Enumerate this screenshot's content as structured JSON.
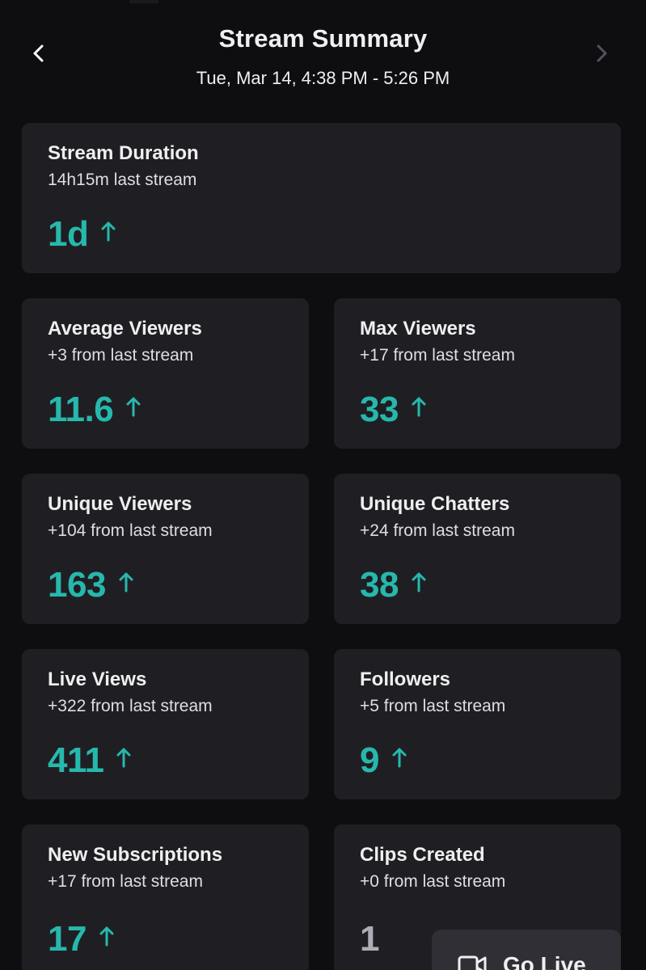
{
  "header": {
    "title": "Stream Summary",
    "date_range": "Tue, Mar 14, 4:38 PM - 5:26 PM"
  },
  "colors": {
    "accent": "#27b8ad",
    "card_bg": "#1f1f23",
    "page_bg": "#0e0e10",
    "muted_value": "#adadb8"
  },
  "icons": {
    "prev": "chevron-left-icon",
    "next": "chevron-right-icon",
    "trend": "arrow-up-icon",
    "pill": "video-camera-icon"
  },
  "stats": {
    "duration": {
      "title": "Stream Duration",
      "subtitle": "14h15m last stream",
      "value": "1d",
      "trend": "up"
    },
    "avg_viewers": {
      "title": "Average Viewers",
      "subtitle": "+3 from last stream",
      "value": "11.6",
      "trend": "up"
    },
    "max_viewers": {
      "title": "Max Viewers",
      "subtitle": "+17 from last stream",
      "value": "33",
      "trend": "up"
    },
    "unique_viewers": {
      "title": "Unique Viewers",
      "subtitle": "+104 from last stream",
      "value": "163",
      "trend": "up"
    },
    "unique_chatters": {
      "title": "Unique Chatters",
      "subtitle": "+24 from last stream",
      "value": "38",
      "trend": "up"
    },
    "live_views": {
      "title": "Live Views",
      "subtitle": "+322 from last stream",
      "value": "411",
      "trend": "up"
    },
    "followers": {
      "title": "Followers",
      "subtitle": "+5 from last stream",
      "value": "9",
      "trend": "up"
    },
    "new_subs": {
      "title": "New Subscriptions",
      "subtitle": "+17 from last stream",
      "value": "17",
      "trend": "up"
    },
    "clips": {
      "title": "Clips Created",
      "subtitle": "+0 from last stream",
      "value": "1",
      "trend": "none"
    }
  },
  "floating_button": {
    "label": "Go Live"
  }
}
